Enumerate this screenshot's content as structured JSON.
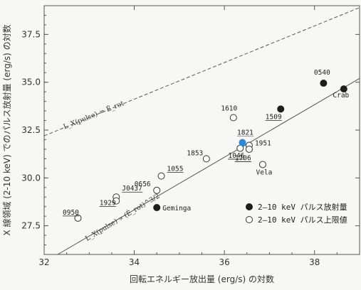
{
  "chart_data": {
    "type": "scatter",
    "xlabel": "回転エネルギー放出量 (erg/s) の対数",
    "ylabel": "X 線領域 (2-10 keV) でのパルス放射量 (erg/s) の対数",
    "xlim": [
      32,
      39
    ],
    "ylim": [
      26,
      39
    ],
    "xticks": [
      "32",
      "34",
      "36",
      "38"
    ],
    "yticks": [
      "27.5",
      "30.0",
      "32.5",
      "35.0",
      "37.5"
    ],
    "grid": false,
    "legend_position": "bottom-right",
    "lines": [
      {
        "kind": "dashed",
        "x": [
          32,
          39
        ],
        "y": [
          32.2,
          38.9
        ],
        "label": "L_X(pulse) = Ė_rot"
      },
      {
        "kind": "solid",
        "x": [
          32.3,
          39
        ],
        "y": [
          26.0,
          35.2
        ],
        "label": "L_X(pulse) ∝ (Ė_rot)^3/2"
      }
    ],
    "series": [
      {
        "name": "2–10 keV パルス放射量",
        "marker": "filled",
        "color": "#222222",
        "points": [
          {
            "label": "0540",
            "x": 38.2,
            "y": 34.95
          },
          {
            "label": "Crab",
            "x": 38.65,
            "y": 34.65
          },
          {
            "label": "1509",
            "x": 37.25,
            "y": 33.6
          },
          {
            "label": "Geminga",
            "x": 34.5,
            "y": 28.45
          }
        ]
      },
      {
        "name": "2–10 keV パルス上限値",
        "marker": "open",
        "color": "#222222",
        "points": [
          {
            "label": "1610",
            "x": 36.2,
            "y": 33.15
          },
          {
            "label": "1951",
            "x": 36.55,
            "y": 31.7
          },
          {
            "label": "1046",
            "x": 36.55,
            "y": 31.5
          },
          {
            "label": "1706",
            "x": 36.35,
            "y": 31.55
          },
          {
            "label": "Vela",
            "x": 36.85,
            "y": 30.7
          },
          {
            "label": "1853",
            "x": 35.6,
            "y": 31.0
          },
          {
            "label": "1055",
            "x": 34.6,
            "y": 30.1
          },
          {
            "label": "0656",
            "x": 34.5,
            "y": 29.35
          },
          {
            "label": "J0437",
            "x": 33.6,
            "y": 29.0
          },
          {
            "label": "1929",
            "x": 33.6,
            "y": 28.8
          },
          {
            "label": "0950",
            "x": 32.75,
            "y": 27.9
          }
        ]
      },
      {
        "name": "1821",
        "marker": "filled-highlight",
        "color": "#2e86d6",
        "points": [
          {
            "label": "1821",
            "x": 36.4,
            "y": 31.85
          }
        ]
      }
    ]
  },
  "legend": {
    "filled": "2–10 keV パルス放射量",
    "open": "2–10 keV パルス上限値"
  }
}
